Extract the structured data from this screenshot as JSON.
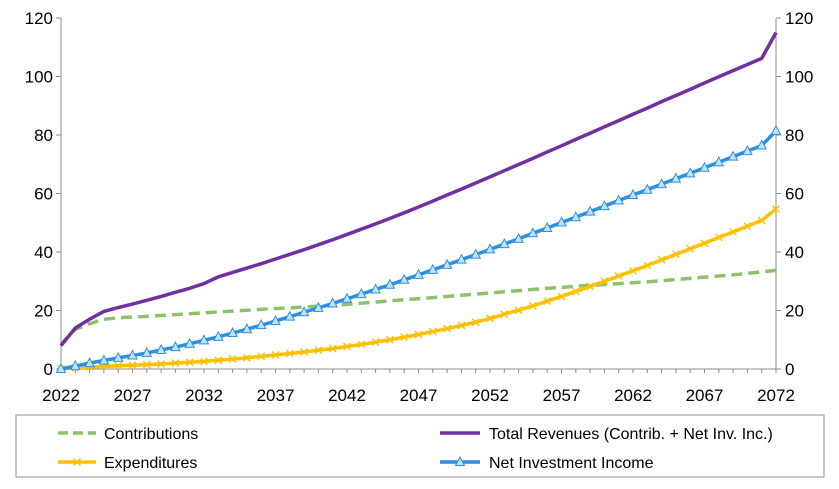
{
  "chart_data": {
    "type": "line",
    "title": "",
    "xlabel": "",
    "ylabel": "",
    "xlim": [
      2022,
      2072
    ],
    "ylim": [
      0,
      120
    ],
    "y2lim": [
      0,
      120
    ],
    "grid": false,
    "legend_position": "bottom",
    "x_ticks": [
      "2022",
      "2027",
      "2032",
      "2037",
      "2042",
      "2047",
      "2052",
      "2057",
      "2062",
      "2067",
      "2072"
    ],
    "y_ticks": [
      "0",
      "20",
      "40",
      "60",
      "80",
      "100",
      "120"
    ],
    "y2_ticks": [
      "0",
      "20",
      "40",
      "60",
      "80",
      "100",
      "120"
    ],
    "x": [
      2022,
      2023,
      2024,
      2025,
      2026,
      2027,
      2028,
      2029,
      2030,
      2031,
      2032,
      2033,
      2034,
      2035,
      2036,
      2037,
      2038,
      2039,
      2040,
      2041,
      2042,
      2043,
      2044,
      2045,
      2046,
      2047,
      2048,
      2049,
      2050,
      2051,
      2052,
      2053,
      2054,
      2055,
      2056,
      2057,
      2058,
      2059,
      2060,
      2061,
      2062,
      2063,
      2064,
      2065,
      2066,
      2067,
      2068,
      2069,
      2070,
      2071,
      2072
    ],
    "series": [
      {
        "name": "Contributions",
        "color": "#8dc26d",
        "style": "dashed",
        "marker": "none",
        "values": [
          8.5,
          13.5,
          15.5,
          17.0,
          17.5,
          17.8,
          18.0,
          18.3,
          18.6,
          18.9,
          19.2,
          19.5,
          19.8,
          20.1,
          20.4,
          20.7,
          20.9,
          21.2,
          21.5,
          21.8,
          22.1,
          22.5,
          22.9,
          23.3,
          23.7,
          24.0,
          24.4,
          24.8,
          25.2,
          25.6,
          26.0,
          26.4,
          26.8,
          27.2,
          27.6,
          27.9,
          28.3,
          28.6,
          28.9,
          29.2,
          29.5,
          29.8,
          30.2,
          30.6,
          31.0,
          31.4,
          31.8,
          32.2,
          32.7,
          33.2,
          33.7
        ]
      },
      {
        "name": "Total Revenues (Contrib. + Net Inv. Inc.)",
        "color": "#7030a0",
        "style": "solid",
        "marker": "none",
        "values": [
          8.0,
          14.0,
          17.0,
          19.7,
          21.0,
          22.2,
          23.5,
          24.8,
          26.2,
          27.6,
          29.2,
          31.5,
          33.0,
          34.5,
          36.0,
          37.6,
          39.2,
          40.8,
          42.5,
          44.2,
          46.0,
          47.8,
          49.6,
          51.5,
          53.4,
          55.4,
          57.4,
          59.5,
          61.5,
          63.6,
          65.7,
          67.8,
          69.9,
          72.0,
          74.2,
          76.3,
          78.5,
          80.6,
          82.8,
          84.9,
          87.1,
          89.2,
          91.4,
          93.5,
          95.6,
          97.8,
          99.9,
          102.0,
          104.1,
          106.2,
          115.0
        ]
      },
      {
        "name": "Expenditures",
        "color": "#ffc000",
        "style": "solid",
        "marker": "x",
        "values": [
          0.0,
          0.4,
          0.7,
          0.9,
          1.1,
          1.3,
          1.5,
          1.7,
          2.0,
          2.3,
          2.6,
          3.0,
          3.4,
          3.8,
          4.3,
          4.8,
          5.3,
          5.8,
          6.4,
          7.0,
          7.7,
          8.4,
          9.2,
          10.0,
          10.9,
          11.8,
          12.8,
          13.8,
          14.9,
          16.0,
          17.3,
          18.7,
          20.1,
          21.6,
          23.2,
          24.8,
          26.5,
          28.2,
          30.0,
          31.8,
          33.6,
          35.4,
          37.3,
          39.2,
          41.1,
          43.0,
          45.0,
          46.9,
          48.8,
          50.8,
          54.7
        ]
      },
      {
        "name": "Net Investment Income",
        "color": "#2e8fe0",
        "style": "solid",
        "marker": "triangle",
        "values": [
          0.0,
          1.0,
          2.0,
          2.9,
          3.8,
          4.6,
          5.5,
          6.5,
          7.5,
          8.6,
          9.8,
          11.0,
          12.3,
          13.6,
          15.0,
          16.4,
          17.9,
          19.4,
          20.9,
          22.4,
          24.0,
          25.6,
          27.2,
          28.8,
          30.5,
          32.2,
          33.9,
          35.6,
          37.4,
          39.1,
          40.9,
          42.7,
          44.5,
          46.4,
          48.2,
          50.1,
          51.9,
          53.8,
          55.7,
          57.6,
          59.5,
          61.3,
          63.2,
          65.1,
          66.9,
          68.8,
          70.7,
          72.6,
          74.5,
          76.4,
          81.4
        ]
      }
    ]
  },
  "legend": {
    "items": [
      {
        "label": "Contributions"
      },
      {
        "label": "Total Revenues (Contrib. + Net Inv. Inc.)"
      },
      {
        "label": "Expenditures"
      },
      {
        "label": "Net Investment Income"
      }
    ]
  }
}
